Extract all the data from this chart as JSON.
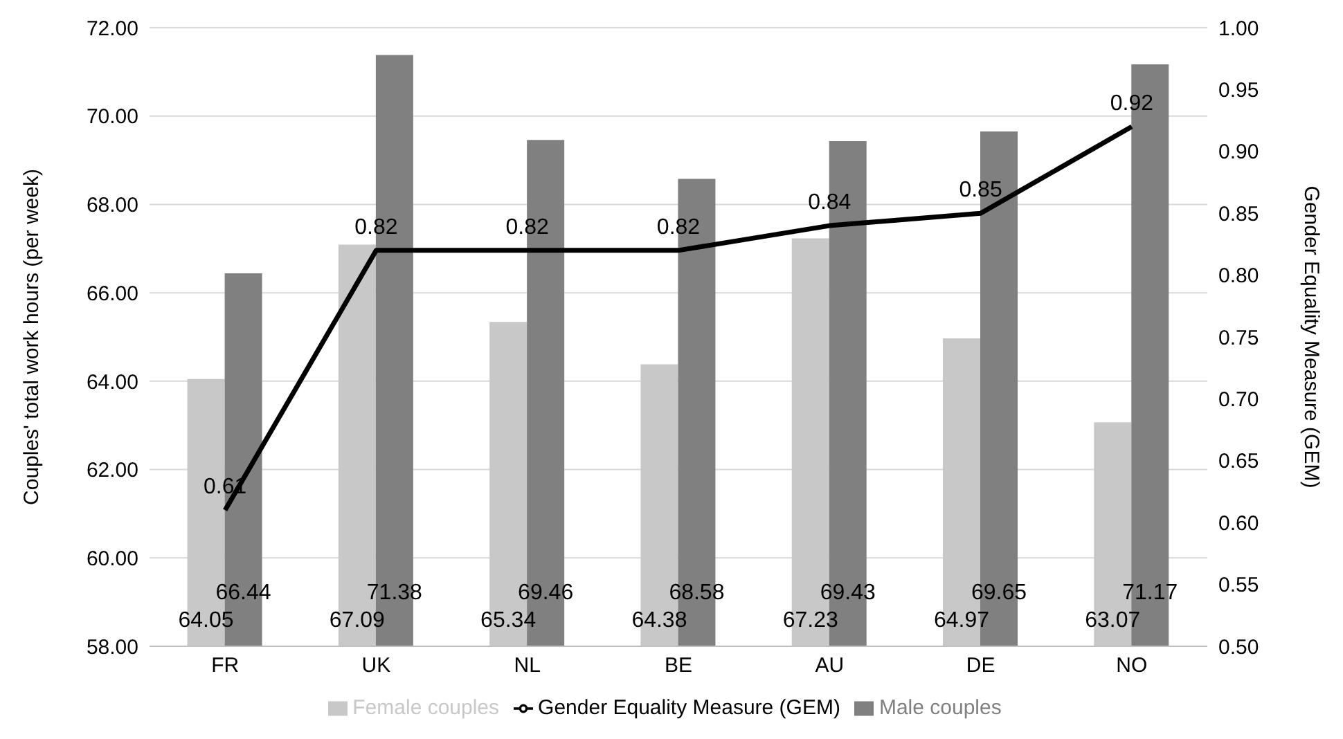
{
  "chart_data": {
    "type": "bar",
    "categories": [
      "FR",
      "UK",
      "NL",
      "BE",
      "AU",
      "DE",
      "NO"
    ],
    "series": [
      {
        "name": "Female couples",
        "color": "#c8c8c8",
        "values": [
          64.05,
          67.09,
          65.34,
          64.38,
          67.23,
          64.97,
          63.07
        ]
      },
      {
        "name": "Male couples",
        "color": "#808080",
        "values": [
          66.44,
          71.38,
          69.46,
          68.58,
          69.43,
          69.65,
          71.17
        ]
      },
      {
        "name": "Gender Equality Measure (GEM)",
        "type": "line",
        "axis": "y2",
        "color": "#000000",
        "values": [
          0.61,
          0.82,
          0.82,
          0.82,
          0.84,
          0.85,
          0.92
        ],
        "marker": "none",
        "line_style": "solid"
      }
    ],
    "ylabel": "Couples' total work hours (per week)",
    "y2label": "Gender Equality Measure (GEM)",
    "ylim": [
      58,
      72
    ],
    "yticks": [
      {
        "value": 58,
        "label": "58.00"
      },
      {
        "value": 60,
        "label": "60.00"
      },
      {
        "value": 62,
        "label": "62.00"
      },
      {
        "value": 64,
        "label": "64.00"
      },
      {
        "value": 66,
        "label": "66.00"
      },
      {
        "value": 68,
        "label": "68.00"
      },
      {
        "value": 70,
        "label": "70.00"
      },
      {
        "value": 72,
        "label": "72.00"
      }
    ],
    "y2lim": [
      0.5,
      1.0
    ],
    "y2ticks": [
      {
        "value": 0.5,
        "label": "0.50"
      },
      {
        "value": 0.55,
        "label": "0.55"
      },
      {
        "value": 0.6,
        "label": "0.60"
      },
      {
        "value": 0.65,
        "label": "0.65"
      },
      {
        "value": 0.7,
        "label": "0.70"
      },
      {
        "value": 0.75,
        "label": "0.75"
      },
      {
        "value": 0.8,
        "label": "0.80"
      },
      {
        "value": 0.85,
        "label": "0.85"
      },
      {
        "value": 0.9,
        "label": "0.90"
      },
      {
        "value": 0.95,
        "label": "0.95"
      },
      {
        "value": 1.0,
        "label": "1.00"
      }
    ],
    "grid": "y",
    "legend": "bottom",
    "data_labels": true
  }
}
